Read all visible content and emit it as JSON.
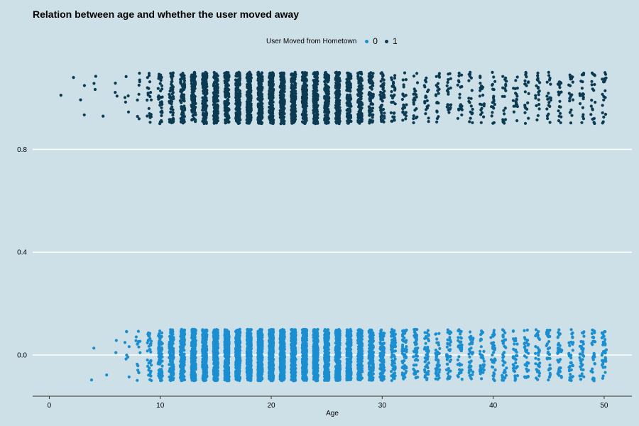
{
  "chart_data": {
    "type": "scatter",
    "title": "Relation between age and whether the user moved away",
    "xlabel": "Age",
    "ylabel": "",
    "xlim": [
      -1.5,
      52.5
    ],
    "ylim": [
      -0.16,
      1.16
    ],
    "x_ticks": [
      0,
      10,
      20,
      30,
      40,
      50
    ],
    "y_ticks": [
      0.0,
      0.4,
      0.8
    ],
    "y_tick_labels": [
      "0.0",
      "0.4",
      "0.8"
    ],
    "grid": "horizontal",
    "jitter_y": 0.1,
    "legend": {
      "title": "User Moved from Hometown",
      "placement": "top-center",
      "entries": [
        "0",
        "1"
      ]
    },
    "series": [
      {
        "name": "0",
        "y": 0,
        "color": "#1a8ed1",
        "age_range": [
          4,
          50
        ],
        "counts_by_age": {
          "4": 2,
          "5": 1,
          "6": 2,
          "7": 8,
          "8": 15,
          "9": 40,
          "10": 90,
          "11": 150,
          "12": 200,
          "13": 260,
          "14": 300,
          "15": 330,
          "16": 340,
          "17": 350,
          "18": 360,
          "19": 365,
          "20": 360,
          "21": 355,
          "22": 350,
          "23": 340,
          "24": 330,
          "25": 310,
          "26": 290,
          "27": 260,
          "28": 220,
          "29": 170,
          "30": 120,
          "31": 80,
          "32": 60,
          "33": 50,
          "34": 45,
          "35": 40,
          "36": 40,
          "37": 38,
          "38": 38,
          "39": 36,
          "40": 36,
          "41": 36,
          "42": 35,
          "43": 35,
          "44": 35,
          "45": 35,
          "46": 35,
          "47": 35,
          "48": 35,
          "49": 35,
          "50": 35
        }
      },
      {
        "name": "1",
        "y": 1,
        "color": "#0b3a52",
        "age_range": [
          1,
          50
        ],
        "counts_by_age": {
          "1": 1,
          "2": 1,
          "3": 3,
          "4": 3,
          "5": 1,
          "6": 3,
          "7": 5,
          "8": 8,
          "9": 20,
          "10": 35,
          "11": 55,
          "12": 80,
          "13": 110,
          "14": 130,
          "15": 150,
          "16": 160,
          "17": 170,
          "18": 175,
          "19": 180,
          "20": 180,
          "21": 180,
          "22": 175,
          "23": 170,
          "24": 165,
          "25": 160,
          "26": 150,
          "27": 130,
          "28": 110,
          "29": 80,
          "30": 50,
          "31": 30,
          "32": 25,
          "33": 22,
          "34": 20,
          "35": 20,
          "36": 20,
          "37": 20,
          "38": 20,
          "39": 20,
          "40": 20,
          "41": 20,
          "42": 20,
          "43": 20,
          "44": 20,
          "45": 20,
          "46": 20,
          "47": 20,
          "48": 20,
          "49": 20,
          "50": 20
        }
      }
    ]
  }
}
